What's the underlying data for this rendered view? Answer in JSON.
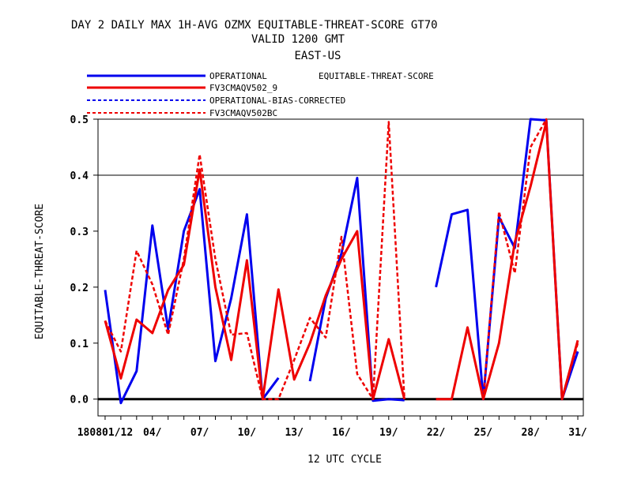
{
  "chart_data": {
    "type": "line",
    "title_lines": [
      "DAY 2 DAILY MAX   1H-AVG OZMX EQUITABLE-THREAT-SCORE GT70",
      "VALID 1200 GMT",
      "EAST-US"
    ],
    "metric_label": "EQUITABLE-THREAT-SCORE",
    "xlabel": "12 UTC CYCLE",
    "ylabel": "EQUITABLE-THREAT-SCORE",
    "ylim": [
      -0.03,
      0.5
    ],
    "yticks": [
      "0.0",
      "0.1",
      "0.2",
      "0.3",
      "0.4",
      "0.5"
    ],
    "ytick_values": [
      0.0,
      0.1,
      0.2,
      0.3,
      0.4,
      0.5
    ],
    "xlim": [
      0.55,
      31.35
    ],
    "xtick_labels": [
      "180801/12",
      "04/",
      "07/",
      "10/",
      "13/",
      "16/",
      "19/",
      "22/",
      "25/",
      "28/",
      "31/"
    ],
    "xtick_days": [
      1,
      4,
      7,
      10,
      13,
      16,
      19,
      22,
      25,
      28,
      31
    ],
    "grid_y": [
      0.4
    ],
    "legend_placement": "top-left",
    "series": [
      {
        "name": "OPERATIONAL",
        "color": "#0000ee",
        "dashed": false,
        "segments": [
          [
            [
              1,
              0.195
            ],
            [
              2,
              -0.007
            ],
            [
              3,
              0.05
            ],
            [
              4,
              0.31
            ],
            [
              5,
              0.125
            ],
            [
              6,
              0.3
            ],
            [
              7,
              0.375
            ],
            [
              8,
              0.068
            ],
            [
              9,
              0.18
            ],
            [
              10,
              0.33
            ],
            [
              11,
              0.0
            ],
            [
              12,
              0.038
            ]
          ],
          [
            [
              14,
              0.032
            ],
            [
              15,
              0.18
            ],
            [
              16,
              0.26
            ],
            [
              17,
              0.395
            ],
            [
              18,
              -0.003
            ],
            [
              19,
              0.0
            ],
            [
              20,
              -0.002
            ]
          ],
          [
            [
              22,
              0.2
            ],
            [
              23,
              0.33
            ],
            [
              24,
              0.338
            ],
            [
              25,
              0.0
            ],
            [
              26,
              0.325
            ],
            [
              27,
              0.27
            ],
            [
              28,
              0.5
            ],
            [
              29,
              0.498
            ],
            [
              30,
              0.0
            ],
            [
              31,
              0.085
            ]
          ]
        ]
      },
      {
        "name": "FV3CMAQV502_9",
        "color": "#ee0000",
        "dashed": false,
        "segments": [
          [
            [
              1,
              0.14
            ],
            [
              2,
              0.037
            ],
            [
              3,
              0.142
            ],
            [
              4,
              0.118
            ],
            [
              5,
              0.195
            ],
            [
              6,
              0.24
            ],
            [
              7,
              0.41
            ],
            [
              8,
              0.2
            ],
            [
              9,
              0.07
            ],
            [
              10,
              0.248
            ],
            [
              11,
              0.0
            ],
            [
              12,
              0.196
            ],
            [
              13,
              0.035
            ],
            [
              14,
              0.1
            ],
            [
              15,
              0.185
            ],
            [
              16,
              0.25
            ],
            [
              17,
              0.3
            ],
            [
              18,
              0.0
            ],
            [
              19,
              0.107
            ],
            [
              20,
              0.0
            ]
          ],
          [
            [
              22,
              0.0
            ],
            [
              23,
              0.0
            ],
            [
              24,
              0.128
            ],
            [
              25,
              0.0
            ],
            [
              26,
              0.1
            ],
            [
              27,
              0.28
            ],
            [
              28,
              0.38
            ],
            [
              29,
              0.495
            ],
            [
              30,
              0.0
            ],
            [
              31,
              0.105
            ]
          ]
        ]
      },
      {
        "name": "OPERATIONAL-BIAS-CORRECTED",
        "color": "#0000ee",
        "dashed": true,
        "segments": []
      },
      {
        "name": "FV3CMAQV502BC",
        "color": "#ee0000",
        "dashed": true,
        "segments": [
          [
            [
              1,
              0.14
            ],
            [
              2,
              0.085
            ],
            [
              3,
              0.265
            ],
            [
              4,
              0.205
            ],
            [
              5,
              0.115
            ],
            [
              6,
              0.25
            ],
            [
              7,
              0.437
            ],
            [
              8,
              0.25
            ],
            [
              9,
              0.115
            ],
            [
              10,
              0.118
            ],
            [
              11,
              0.0
            ],
            [
              12,
              0.0
            ],
            [
              13,
              0.07
            ],
            [
              14,
              0.145
            ],
            [
              15,
              0.11
            ],
            [
              16,
              0.29
            ],
            [
              17,
              0.045
            ],
            [
              18,
              0.0
            ],
            [
              19,
              0.495
            ],
            [
              20,
              0.0
            ]
          ],
          [
            [
              25,
              0.0
            ],
            [
              26,
              0.335
            ],
            [
              27,
              0.225
            ],
            [
              28,
              0.45
            ],
            [
              29,
              0.5
            ],
            [
              30,
              0.0
            ],
            [
              31,
              0.1
            ]
          ]
        ]
      }
    ]
  }
}
